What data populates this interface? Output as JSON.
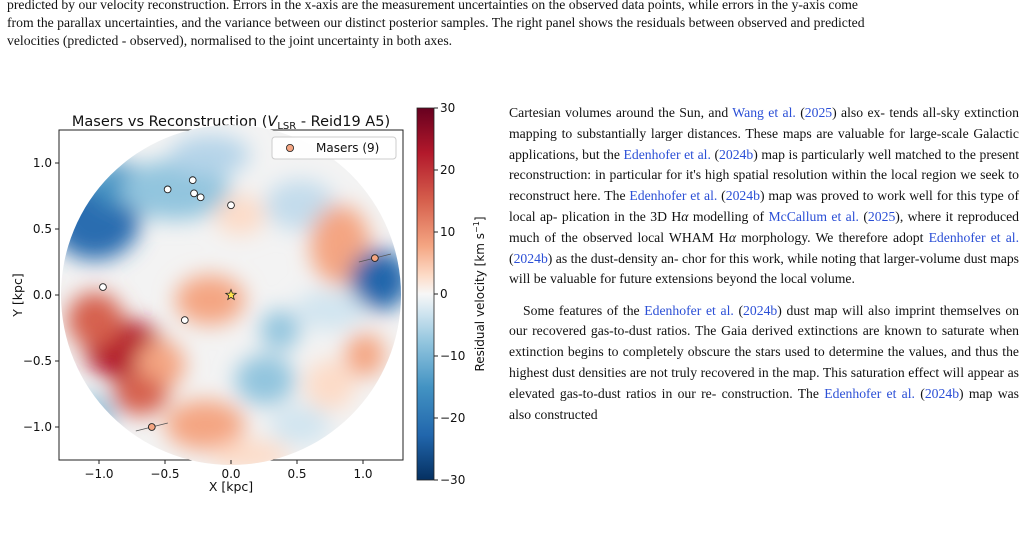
{
  "caption": {
    "line1": "predicted by our velocity reconstruction. Errors in the x-axis are the measurement uncertainties on the observed data points, while errors in the y-axis come",
    "line2": "from the parallax uncertainties, and the variance between our distinct posterior samples. The right panel shows the residuals between observed and predicted",
    "line3": "velocities (predicted - observed), normalised to the joint uncertainty in both axes."
  },
  "figure": {
    "title_prefix": "Masers vs Reconstruction (",
    "title_var": "V",
    "title_sub": "LSR",
    "title_suffix": " - Reid19 A5)",
    "xlabel": "X [kpc]",
    "ylabel": "Y [kpc]",
    "xticks": [
      "−1.0",
      "−0.5",
      "0.0",
      "0.5",
      "1.0"
    ],
    "yticks": [
      "1.0",
      "0.5",
      "0.0",
      "−0.5",
      "−1.0"
    ],
    "legend_label": "Masers (9)",
    "colorbar_label": "Residual velocity [km s",
    "colorbar_label_sup": "−1",
    "colorbar_label_end": "]",
    "colorbar_ticks": [
      "30",
      "20",
      "10",
      "0",
      "−10",
      "−20",
      "−30"
    ],
    "colors": {
      "maser_face": "#ffffff",
      "maser_edge": "#222222",
      "legend_marker": "#f4a582",
      "sun_marker": "#ffe34d",
      "outlier_marker": "#f4a582"
    }
  },
  "chart_data": {
    "type": "heatmap",
    "title": "Masers vs Reconstruction (V_LSR - Reid19 A5)",
    "xlabel": "X [kpc]",
    "ylabel": "Y [kpc]",
    "xlim": [
      -1.25,
      1.25
    ],
    "ylim": [
      -1.25,
      1.25
    ],
    "colorbar_range": [
      -30,
      30
    ],
    "colorbar_label": "Residual velocity [km s−1]",
    "colormap": "RdBu_r",
    "legend": "top-right",
    "masers": [
      {
        "x": -0.48,
        "y": 0.8
      },
      {
        "x": -0.29,
        "y": 0.87
      },
      {
        "x": -0.28,
        "y": 0.77
      },
      {
        "x": -0.23,
        "y": 0.74
      },
      {
        "x": 0.0,
        "y": 0.68
      },
      {
        "x": -0.97,
        "y": 0.06
      },
      {
        "x": -0.35,
        "y": -0.19
      },
      {
        "x": -0.6,
        "y": -1.0
      },
      {
        "x": 1.09,
        "y": 0.28
      }
    ],
    "sun": {
      "x": 0.0,
      "y": 0.0
    }
  },
  "text": {
    "p1_l1a": "Cartesian volumes around the Sun, and ",
    "p1_l1_link": "Wang et al.",
    "p1_l1b": " (",
    "p1_l1_year": "2025",
    "p1_l1c": ") also ex-",
    "p1_l2": "tends all-sky extinction mapping to substantially larger distances.",
    "p1_l3": "These maps are valuable for large-scale Galactic applications, but",
    "p1_l4a": "the ",
    "p1_l4_link": "Edenhofer et al.",
    "p1_l4b": " (",
    "p1_l4_year": "2024b",
    "p1_l4c": ") map is particularly well matched to the",
    "p1_l5": "present reconstruction: in particular for it's high spatial resolution",
    "p1_l6a": "within the local region we seek to reconstruct here. The ",
    "p1_l6_link": "Edenhofer",
    "p1_l7_link": "et al.",
    "p1_l7b": " (",
    "p1_l7_year": "2024b",
    "p1_l7c": ") map was proved to work well for this type of local ap-",
    "p1_l8a": "plication in the 3D H",
    "p1_l8_alpha": "α",
    "p1_l8b": " modelling of ",
    "p1_l8_link": "McCallum et al.",
    "p1_l8c": " (",
    "p1_l8_year": "2025",
    "p1_l8d": "), where",
    "p1_l9a": "it reproduced much of the observed local WHAM H",
    "p1_l9_alpha": "α",
    "p1_l9b": " morphology.",
    "p1_l10a": "We therefore adopt ",
    "p1_l10_link": "Edenhofer et al.",
    "p1_l10b": " (",
    "p1_l10_year": "2024b",
    "p1_l10c": ") as the dust-density an-",
    "p1_l11": "chor for this work, while noting that larger-volume dust maps will be",
    "p1_l12": "valuable for future extensions beyond the local volume.",
    "p2_l1a": "Some features of the ",
    "p2_l1_link": "Edenhofer et al.",
    "p2_l1b": " (",
    "p2_l1_year": "2024b",
    "p2_l1c": ") dust map will also",
    "p2_l2": "imprint themselves on our recovered gas-to-dust ratios. The Gaia",
    "p2_l3": "derived extinctions are known to saturate when extinction begins to",
    "p2_l4": "completely obscure the stars used to determine the values, and thus",
    "p2_l5": "the highest dust densities are not truly recovered in the map. This",
    "p2_l6": "saturation effect will appear as elevated gas-to-dust ratios in our re-",
    "p2_l7a": "construction. The ",
    "p2_l7_link": "Edenhofer et al.",
    "p2_l7b": " (",
    "p2_l7_year": "2024b",
    "p2_l7c": ") map was also constructed"
  }
}
